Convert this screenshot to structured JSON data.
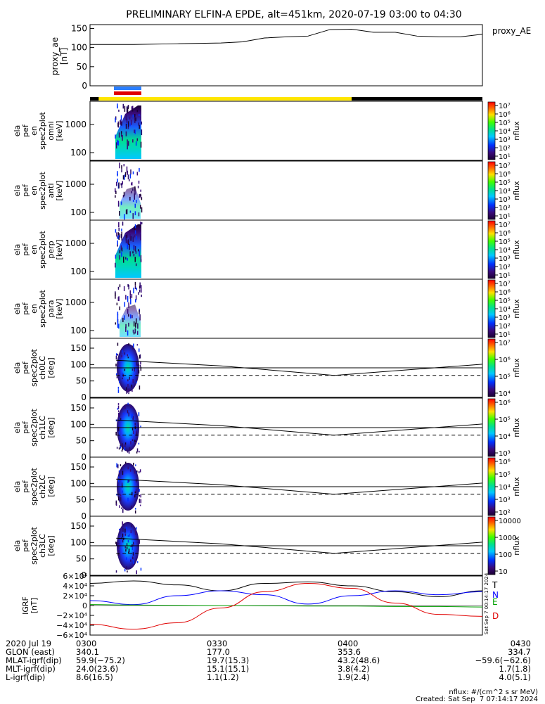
{
  "title": "PRELIMINARY ELFIN-A EPDE, alt=451km, 2020-07-19 03:00 to 04:30",
  "colors": {
    "T": "#000000",
    "N": "#0000ff",
    "E": "#00a000",
    "D": "#e00000",
    "bar_blue": "#2a7fff",
    "bar_red": "#e00000",
    "bar_yellow": "#ffe600"
  },
  "panels": {
    "ae": {
      "ylabel": [
        "proxy_ae",
        "[nT]"
      ],
      "ticks": [
        "150",
        "100",
        "50",
        "0"
      ],
      "legend": "proxy_AE"
    },
    "spec": [
      {
        "ylabel": [
          "ela",
          "pef",
          "en",
          "spec2plot",
          "omni",
          "[keV]"
        ],
        "ticks": [
          "1000",
          "100"
        ]
      },
      {
        "ylabel": [
          "ela",
          "pef",
          "en",
          "spec2plot",
          "anti",
          "[keV]"
        ],
        "ticks": [
          "1000",
          "100"
        ]
      },
      {
        "ylabel": [
          "ela",
          "pef",
          "en",
          "spec2plot",
          "perp",
          "[keV]"
        ],
        "ticks": [
          "1000",
          "100"
        ]
      },
      {
        "ylabel": [
          "ela",
          "pef",
          "en",
          "spec2plot",
          "para",
          "[keV]"
        ],
        "ticks": [
          "1000",
          "100"
        ]
      },
      {
        "ylabel": [
          "ela",
          "pef",
          "spec2plot",
          "ch0LC",
          "[deg]"
        ],
        "ticks": [
          "150",
          "100",
          "50",
          "0"
        ]
      },
      {
        "ylabel": [
          "ela",
          "pef",
          "spec2plot",
          "ch1LC",
          "[deg]"
        ],
        "ticks": [
          "150",
          "100",
          "50",
          "0"
        ]
      },
      {
        "ylabel": [
          "ela",
          "pef",
          "spec2plot",
          "ch2LC",
          "[deg]"
        ],
        "ticks": [
          "150",
          "100",
          "50",
          "0"
        ]
      },
      {
        "ylabel": [
          "ela",
          "pef",
          "spec2plot",
          "ch3LC",
          "[deg]"
        ],
        "ticks": [
          "150",
          "100",
          "50",
          "0"
        ]
      }
    ],
    "igrf": {
      "ylabel": [
        "IGRF",
        "[nT]"
      ],
      "ticks": [
        "6×10⁴",
        "4×10⁴",
        "2×10⁴",
        "0",
        "−2×10⁴",
        "−4×10⁴",
        "−6×10⁴"
      ],
      "legend": [
        "T",
        "N",
        "E",
        "D"
      ],
      "stamp": "Sat Sep  7 00:14:17 2024"
    }
  },
  "colorbars": [
    {
      "ticks": [
        "10⁷",
        "10⁶",
        "10⁵",
        "10⁴",
        "10³",
        "10²",
        "10¹"
      ],
      "unit": "nflux"
    },
    {
      "ticks": [
        "10⁷",
        "10⁶",
        "10⁵",
        "10⁴",
        "10³",
        "10²",
        "10¹"
      ],
      "unit": "nflux"
    },
    {
      "ticks": [
        "10⁷",
        "10⁶",
        "10⁵",
        "10⁴",
        "10³",
        "10²",
        "10¹"
      ],
      "unit": "nflux"
    },
    {
      "ticks": [
        "10⁷",
        "10⁶",
        "10⁵",
        "10⁴",
        "10³",
        "10²",
        "10¹"
      ],
      "unit": "nflux"
    },
    {
      "ticks": [
        "10⁷",
        "10⁶",
        "10⁵",
        "10⁴"
      ],
      "unit": "nflux"
    },
    {
      "ticks": [
        "10⁶",
        "10⁵",
        "10⁴",
        "10³"
      ],
      "unit": "nflux"
    },
    {
      "ticks": [
        "10⁶",
        "10⁵",
        "10⁴",
        "10³",
        "10²"
      ],
      "unit": "nflux"
    },
    {
      "ticks": [
        "10000",
        "1000",
        "100",
        "10"
      ],
      "unit": "nflux"
    }
  ],
  "chart_data": {
    "type": "line",
    "title": "PRELIMINARY ELFIN-A EPDE, alt=451km, 2020-07-19 03:00 to 04:30",
    "x_unit": "UT (hhmm)",
    "xlim": [
      "03:00",
      "04:30"
    ],
    "proxy_ae": {
      "x": [
        "03:00",
        "03:10",
        "03:20",
        "03:30",
        "03:35",
        "03:40",
        "03:45",
        "03:50",
        "03:55",
        "04:00",
        "04:05",
        "04:10",
        "04:15",
        "04:20",
        "04:25",
        "04:30"
      ],
      "y": [
        108,
        108,
        110,
        112,
        115,
        125,
        128,
        130,
        147,
        148,
        140,
        140,
        130,
        128,
        128,
        135
      ],
      "ylim": [
        0,
        160
      ]
    },
    "loss_cone_deg": {
      "x": [
        "03:06",
        "03:30",
        "03:56",
        "04:30"
      ],
      "y": [
        113,
        96,
        67,
        101
      ],
      "ylim": [
        0,
        180
      ]
    },
    "anti_loss_cone_deg": {
      "x": [
        "03:06",
        "04:30"
      ],
      "y": [
        67,
        67
      ]
    },
    "igrf_nT": {
      "x": [
        "03:00",
        "03:10",
        "03:20",
        "03:30",
        "03:40",
        "03:50",
        "04:00",
        "04:10",
        "04:20",
        "04:30"
      ],
      "series": [
        {
          "name": "T",
          "values": [
            45000,
            50000,
            42000,
            30000,
            45000,
            48000,
            40000,
            28000,
            18000,
            30000
          ]
        },
        {
          "name": "N",
          "values": [
            10000,
            2000,
            20000,
            30000,
            22000,
            3000,
            20000,
            30000,
            22000,
            28000
          ]
        },
        {
          "name": "E",
          "values": [
            2000,
            1000,
            500,
            0,
            -500,
            -1000,
            -1000,
            -2000,
            -2000,
            -3000
          ]
        },
        {
          "name": "D",
          "values": [
            -38000,
            -48000,
            -35000,
            -5000,
            28000,
            45000,
            35000,
            5000,
            -18000,
            -22000
          ]
        }
      ],
      "ylim": [
        -60000,
        60000
      ]
    }
  },
  "science_bar": {
    "colors": [
      "#000000",
      "#ffe600",
      "#000000"
    ],
    "spans": [
      [
        "03:00",
        "03:02"
      ],
      [
        "03:02",
        "04:00"
      ],
      [
        "04:00",
        "04:30"
      ]
    ]
  },
  "footer": {
    "date": "2020 Jul 19",
    "row_labels": [
      "GLON (east)",
      "MLAT-igrf(dip)",
      "MLT-igrf(dip)",
      "L-igrf(dip)"
    ],
    "time_labels": [
      "0300",
      "0330",
      "0400",
      "0430"
    ],
    "glon": [
      "340.1",
      "177.0",
      "353.6",
      "334.7"
    ],
    "mlat": [
      "59.9(−75.2)",
      "19.7(15.3)",
      "43.2(48.6)",
      "−59.6(−62.6)"
    ],
    "mlt": [
      "24.0(23.6)",
      "15.1(15.1)",
      "3.8(4.2)",
      "1.7(1.8)"
    ],
    "lval": [
      "8.6(16.5)",
      "1.1(1.2)",
      "1.9(2.4)",
      "4.0(5.1)"
    ],
    "unit_note": "nflux: #/(cm^2 s sr MeV)",
    "created": "Created: Sat Sep  7 07:14:17 2024"
  }
}
